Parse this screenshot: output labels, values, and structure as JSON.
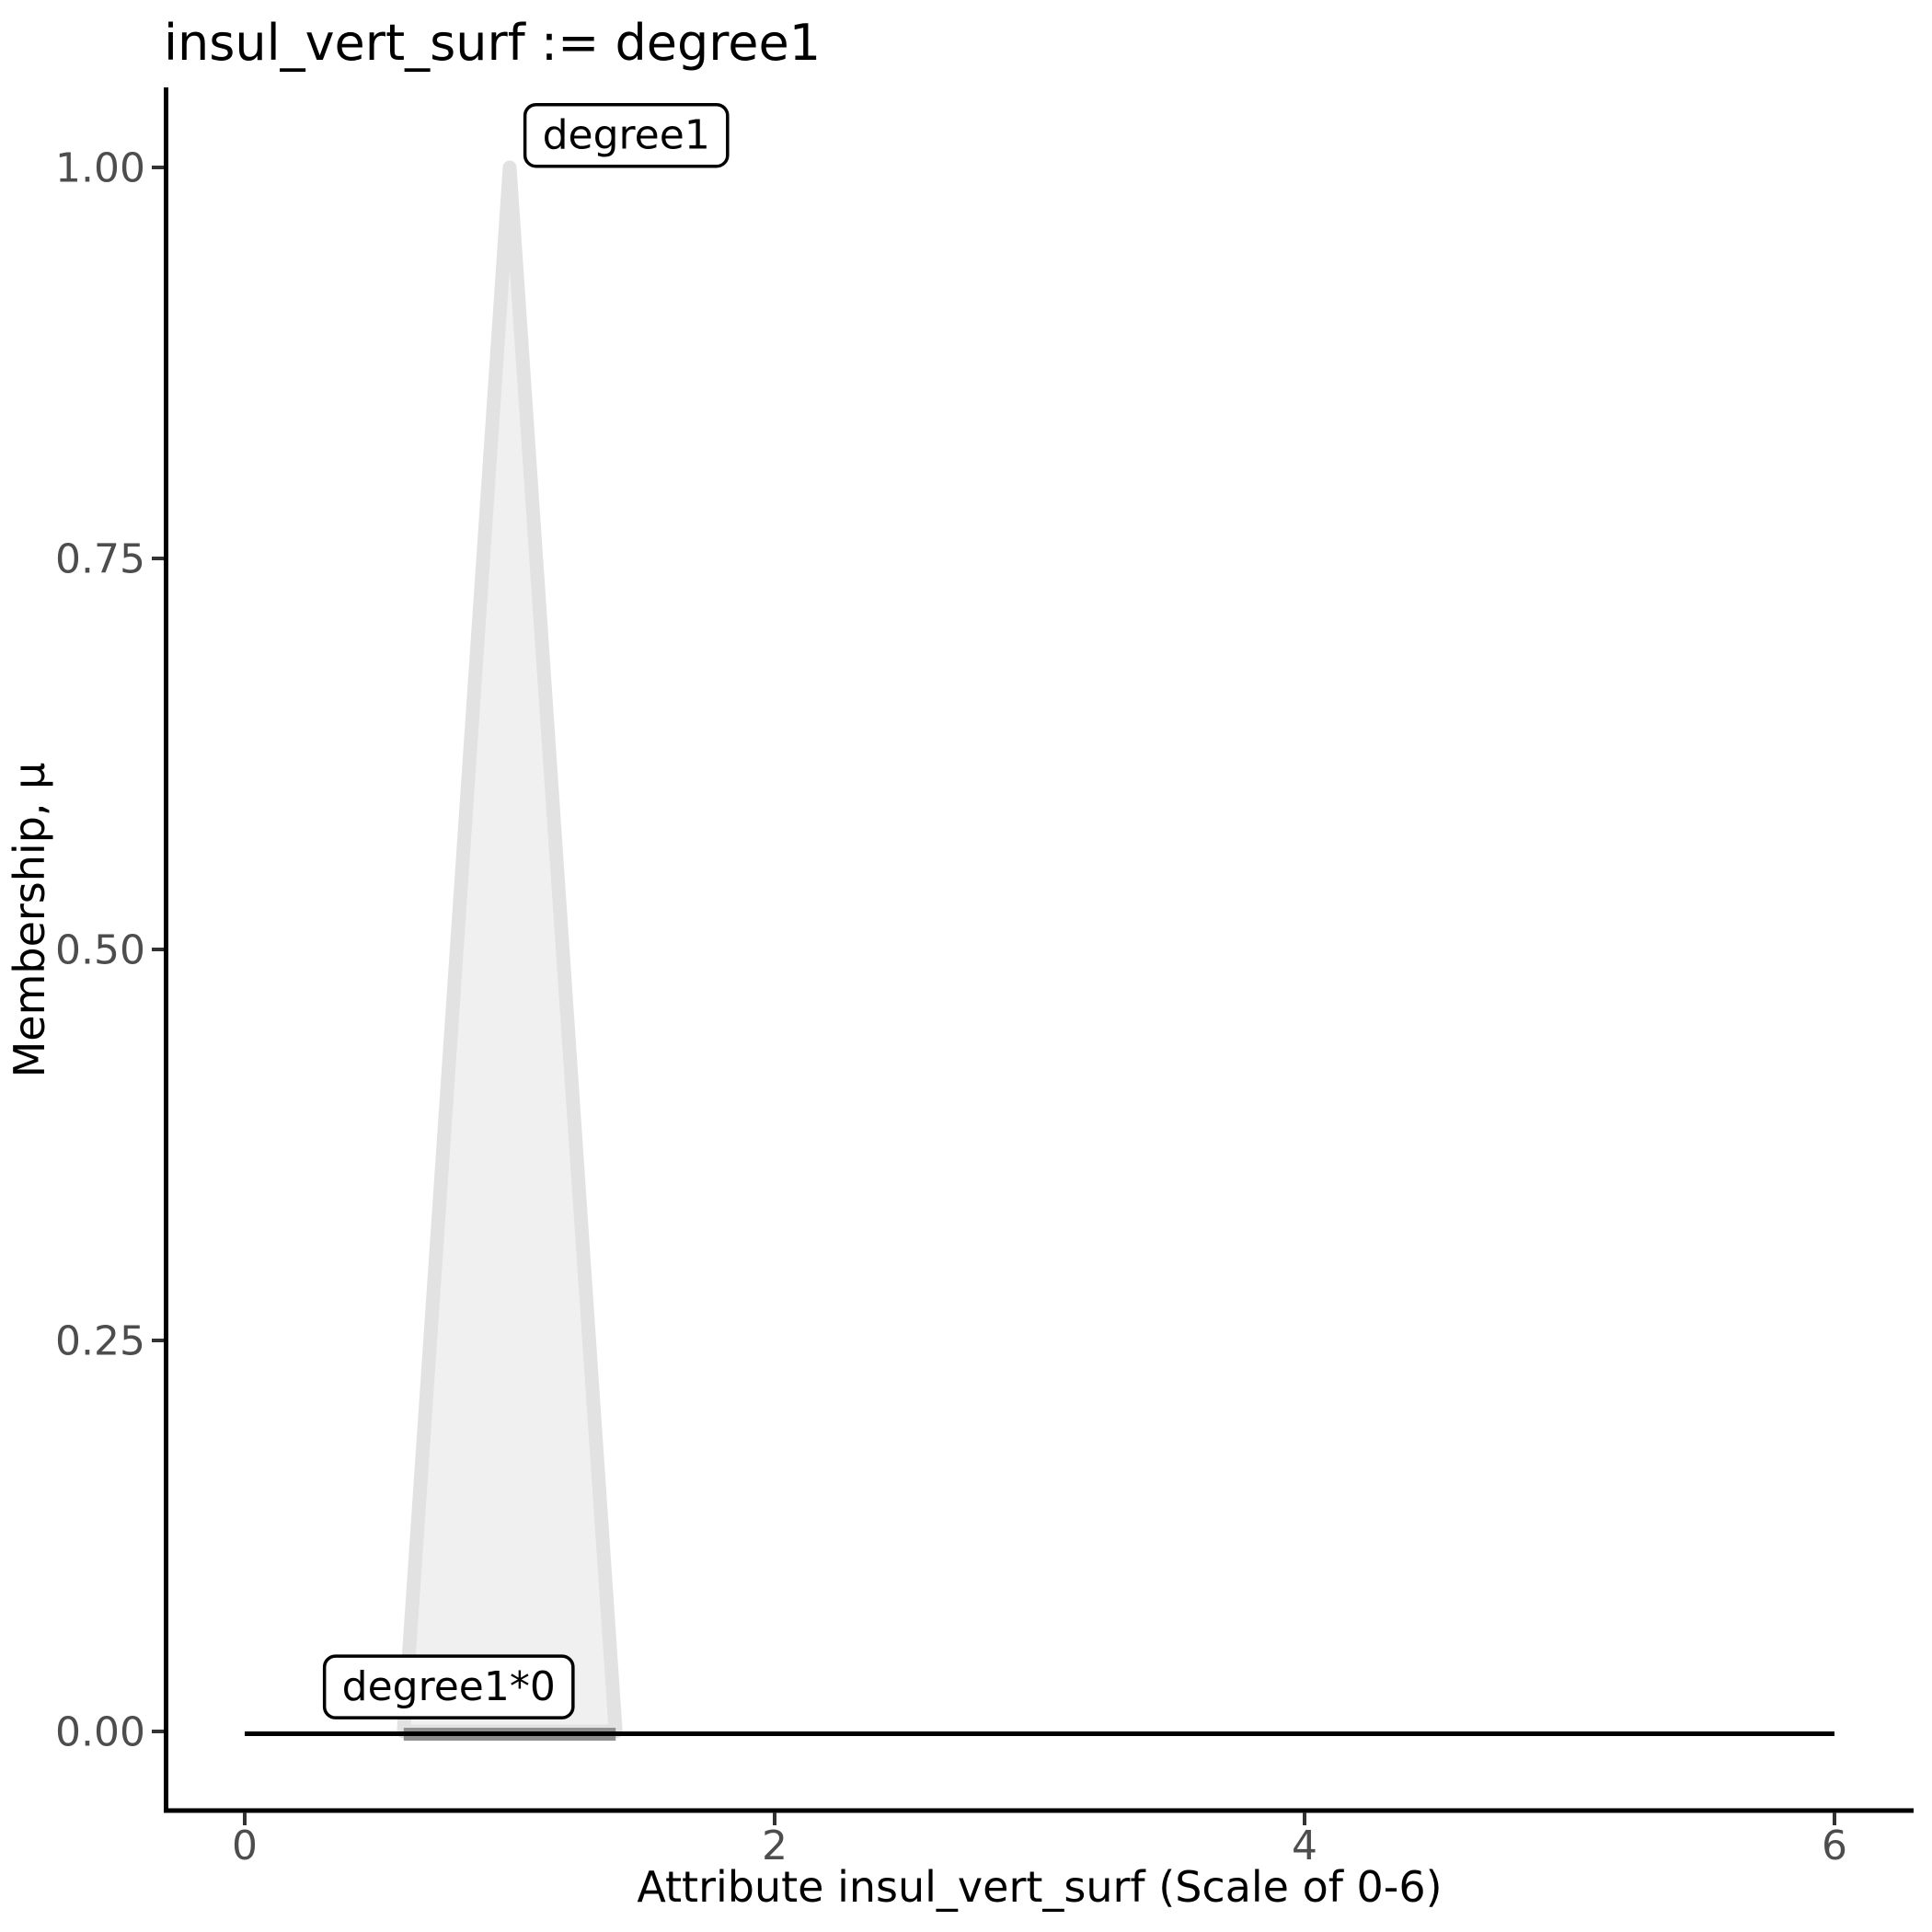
{
  "title": "insul_vert_surf := degree1",
  "chart_data": {
    "type": "area",
    "title": "insul_vert_surf := degree1",
    "xlabel": "Attribute insul_vert_surf (Scale of 0-6)",
    "ylabel": "Membership, μ",
    "xlim": [
      0,
      6
    ],
    "ylim": [
      0,
      1
    ],
    "grid": "off",
    "legend": "none",
    "x_ticks": [
      {
        "value": 0,
        "label": "0"
      },
      {
        "value": 2,
        "label": "2"
      },
      {
        "value": 4,
        "label": "4"
      },
      {
        "value": 6,
        "label": "6"
      }
    ],
    "y_ticks": [
      {
        "value": 1.0,
        "label": "1.00"
      },
      {
        "value": 0.75,
        "label": "0.75"
      },
      {
        "value": 0.5,
        "label": "0.50"
      },
      {
        "value": 0.25,
        "label": "0.25"
      },
      {
        "value": 0.0,
        "label": "0.00"
      }
    ],
    "series": [
      {
        "name": "degree1",
        "kind": "membership-triangle",
        "points": [
          [
            0.6,
            0
          ],
          [
            1.0,
            1.0
          ],
          [
            1.4,
            0
          ]
        ],
        "fill": "#f0f0f0",
        "stroke": "#e2e2e2",
        "stroke_width": 15
      },
      {
        "name": "degree1*0",
        "kind": "scaled-flat-segment",
        "points": [
          [
            0.6,
            0
          ],
          [
            1.4,
            0
          ]
        ],
        "stroke": "#8f8f8f",
        "stroke_width": 14
      },
      {
        "name": "domain-baseline",
        "kind": "line",
        "points": [
          [
            0,
            0
          ],
          [
            6,
            0
          ]
        ],
        "stroke": "#000000",
        "stroke_width": 5
      }
    ],
    "annotations": [
      {
        "text": "degree1",
        "x": 1.44,
        "y": 1.021
      },
      {
        "text": "degree1*0",
        "x": 0.77,
        "y": 0.029
      }
    ],
    "colors": {
      "tick_mark": "#333333",
      "tick_label": "#4d4d4d",
      "axis_line": "#000000",
      "text": "#000000",
      "background": "#ffffff"
    }
  }
}
